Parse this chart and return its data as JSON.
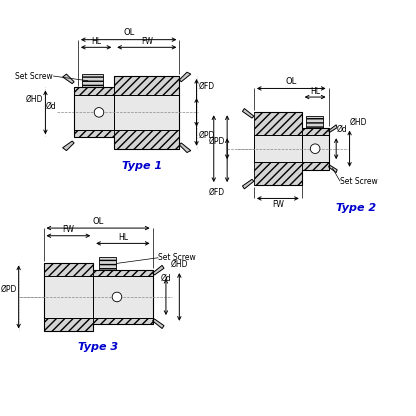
{
  "bg_color": "#ffffff",
  "type_label_color": "#0000cc",
  "type1_label": "Type 1",
  "type2_label": "Type 2",
  "type3_label": "Type 3",
  "fig_width": 4.16,
  "fig_height": 4.16,
  "dpi": 100
}
